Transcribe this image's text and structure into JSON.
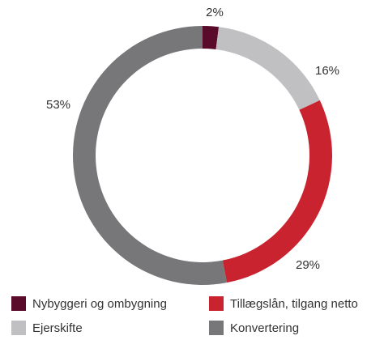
{
  "chart_data": {
    "type": "pie",
    "categories": [
      "Nybyggeri og ombygning",
      "Ejerskifte",
      "Tillægslån, tilgang netto",
      "Konvertering"
    ],
    "values": [
      2,
      16,
      29,
      53
    ],
    "value_labels": [
      "2%",
      "16%",
      "29%",
      "53%"
    ],
    "colors": [
      "#5a0a2a",
      "#c0c0c3",
      "#c8232f",
      "#77777a"
    ],
    "donut": true,
    "slice_order": [
      0,
      1,
      2,
      3
    ],
    "legend_order": [
      0,
      2,
      1,
      3
    ]
  }
}
